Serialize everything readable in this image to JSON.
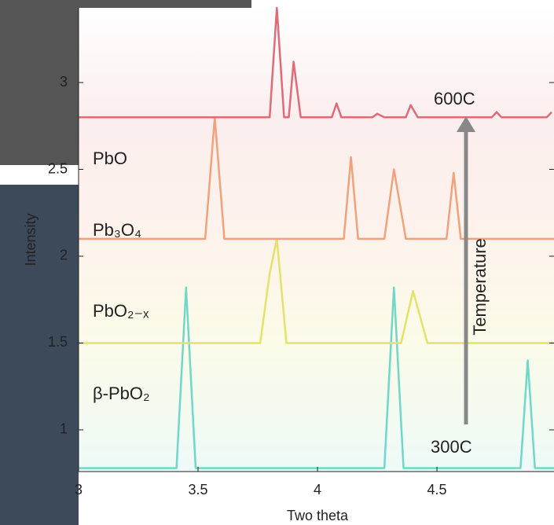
{
  "chart_data": {
    "type": "line",
    "xlabel": "Two theta",
    "ylabel": "Intensity",
    "xlim": [
      3,
      4.99
    ],
    "ylim": [
      0.76,
      3.43
    ],
    "xticks": [
      3,
      3.5,
      4,
      4.5
    ],
    "yticks": [
      1,
      1.5,
      2,
      2.5,
      3
    ],
    "series": [
      {
        "name": "β-PbO₂",
        "color": "#6fd8c8",
        "x": [
          3,
          3.41,
          3.45,
          3.49,
          4.28,
          4.32,
          4.36,
          4.85,
          4.88,
          4.91,
          4.99
        ],
        "values": [
          0.78,
          0.78,
          1.82,
          0.78,
          0.78,
          1.82,
          0.78,
          0.78,
          1.4,
          0.78,
          0.78
        ]
      },
      {
        "name": "PbO₂₋ₓ",
        "color": "#e3e36a",
        "x": [
          3,
          3.76,
          3.8,
          3.83,
          3.87,
          4.35,
          4.4,
          4.46,
          4.99
        ],
        "values": [
          1.5,
          1.5,
          1.9,
          2.1,
          1.5,
          1.5,
          1.8,
          1.5,
          1.5
        ]
      },
      {
        "name": "Pb₃O₄",
        "color": "#f2a27a",
        "x": [
          3,
          3.53,
          3.57,
          3.61,
          4.11,
          4.14,
          4.17,
          4.28,
          4.32,
          4.37,
          4.54,
          4.57,
          4.6,
          4.99
        ],
        "values": [
          2.1,
          2.1,
          2.8,
          2.1,
          2.1,
          2.57,
          2.1,
          2.1,
          2.5,
          2.1,
          2.1,
          2.48,
          2.1,
          2.1
        ]
      },
      {
        "name": "PbO",
        "color": "#e06b78",
        "x": [
          3,
          3.8,
          3.83,
          3.86,
          3.88,
          3.9,
          3.93,
          4.06,
          4.08,
          4.1,
          4.23,
          4.25,
          4.28,
          4.37,
          4.39,
          4.42,
          4.73,
          4.75,
          4.77,
          4.96,
          4.98
        ],
        "values": [
          2.8,
          2.8,
          3.43,
          2.8,
          2.8,
          3.12,
          2.8,
          2.8,
          2.88,
          2.8,
          2.8,
          2.82,
          2.8,
          2.8,
          2.87,
          2.8,
          2.8,
          2.83,
          2.8,
          2.8,
          2.83
        ]
      }
    ],
    "annotations": [
      {
        "text": "PbO",
        "color": "#e06b78"
      },
      {
        "text": "Pb₃O₄",
        "color": "#f2a27a"
      },
      {
        "text": "PbO₂₋ₓ",
        "color": "#e3e36a"
      },
      {
        "text": "β-PbO₂",
        "color": "#6fd8c8"
      },
      {
        "text": "600C",
        "color": "#e06b78"
      },
      {
        "text": "300C",
        "color": "#6fd8c8"
      },
      {
        "text": "Temperature",
        "color": "#666666"
      }
    ]
  }
}
